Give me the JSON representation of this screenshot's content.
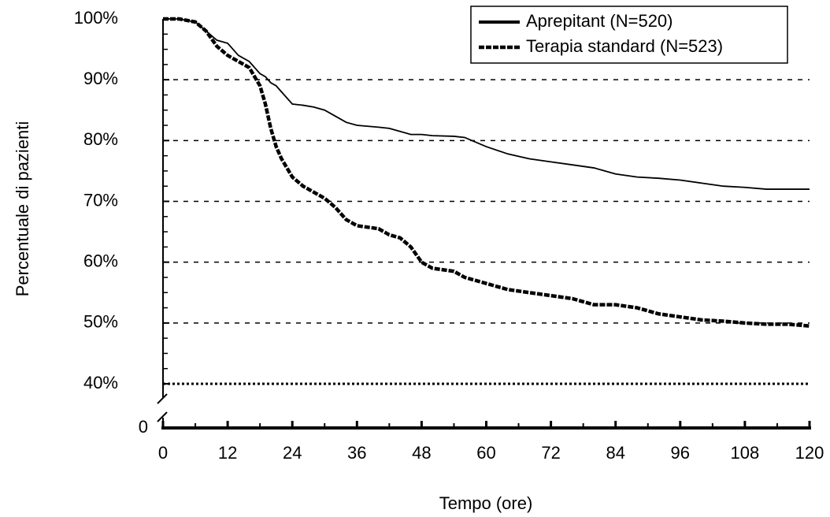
{
  "chart_data": {
    "type": "line",
    "xlabel": "Tempo (ore)",
    "ylabel": "Percentuale di pazienti",
    "x": [
      0,
      3,
      6,
      8,
      10,
      12,
      14,
      16,
      18,
      19,
      20,
      21,
      22,
      24,
      26,
      28,
      30,
      32,
      34,
      36,
      40,
      42,
      44,
      46,
      48,
      50,
      54,
      56,
      60,
      64,
      68,
      72,
      76,
      80,
      84,
      88,
      92,
      96,
      100,
      104,
      108,
      112,
      116,
      120
    ],
    "series": [
      {
        "name": "Aprepitant (N=520)",
        "color": "#000000",
        "style": "solid",
        "values": [
          100,
          100,
          99.5,
          98,
          96.5,
          96,
          94,
          93,
          91,
          90.5,
          89.5,
          89,
          88,
          86,
          85.8,
          85.5,
          85,
          84,
          83,
          82.5,
          82.2,
          82,
          81.5,
          81,
          81,
          80.8,
          80.7,
          80.5,
          79,
          77.8,
          77,
          76.5,
          76,
          75.5,
          74.5,
          74,
          73.8,
          73.5,
          73,
          72.5,
          72.3,
          72,
          72,
          72
        ]
      },
      {
        "name": "Terapia standard (N=523)",
        "color": "#000000",
        "style": "dashed",
        "values": [
          100,
          100,
          99.5,
          98,
          95.5,
          94,
          93,
          92,
          89,
          86,
          82,
          79,
          77,
          74,
          72.5,
          71.5,
          70.5,
          69,
          67,
          66,
          65.5,
          64.5,
          64,
          62.5,
          60,
          59,
          58.5,
          57.5,
          56.5,
          55.5,
          55,
          54.5,
          54,
          53,
          53,
          52.5,
          51.5,
          51,
          50.5,
          50.3,
          50,
          49.8,
          49.8,
          49.5
        ]
      }
    ],
    "xlim": [
      0,
      120
    ],
    "xticks": [
      0,
      12,
      24,
      36,
      48,
      60,
      72,
      84,
      96,
      108,
      120
    ],
    "ylim": [
      40,
      100
    ],
    "yticks": [
      {
        "value": 40,
        "label": "40%"
      },
      {
        "value": 50,
        "label": "50%"
      },
      {
        "value": 60,
        "label": "60%"
      },
      {
        "value": 70,
        "label": "70%"
      },
      {
        "value": 80,
        "label": "80%"
      },
      {
        "value": 90,
        "label": "90%"
      },
      {
        "value": 100,
        "label": "100%"
      }
    ],
    "ybreak_tick": {
      "value": 0,
      "label": "0"
    },
    "grid": true,
    "legend": "upper right"
  }
}
